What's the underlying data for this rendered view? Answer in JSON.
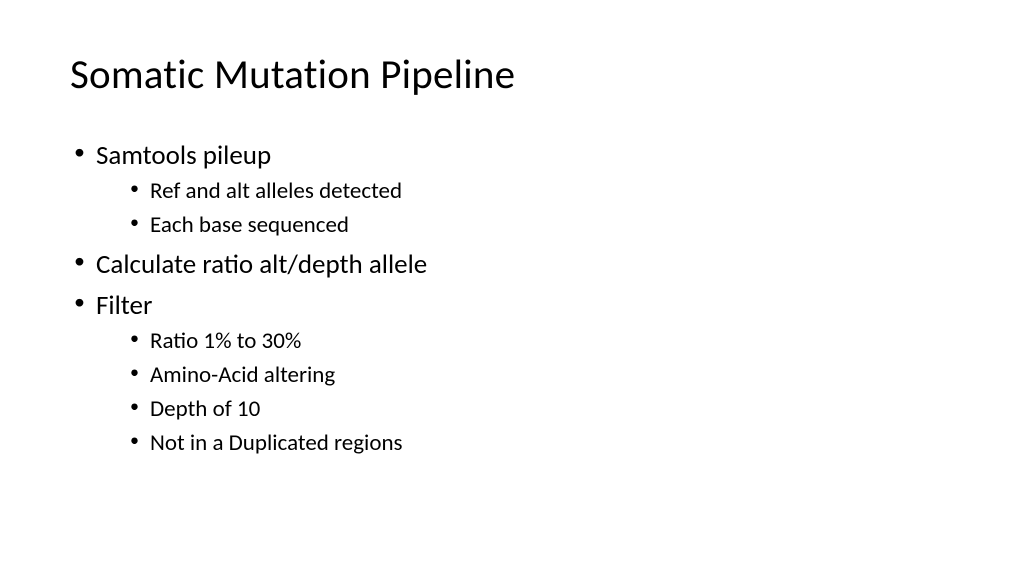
{
  "slide": {
    "title": "Somatic Mutation Pipeline",
    "background_color": "#ffffff",
    "text_color": "#000000",
    "title_fontsize": 41,
    "level1_fontsize": 27,
    "level2_fontsize": 23,
    "font_family": "Calibri",
    "bullets": [
      {
        "text": "Samtools pileup",
        "children": [
          {
            "text": "Ref and alt alleles detected"
          },
          {
            "text": "Each base sequenced"
          }
        ]
      },
      {
        "text": "Calculate ratio alt/depth allele",
        "children": []
      },
      {
        "text": "Filter",
        "children": [
          {
            "text": "Ratio 1% to 30%"
          },
          {
            "text": "Amino-Acid altering"
          },
          {
            "text": "Depth of 10"
          },
          {
            "text": "Not in a Duplicated regions"
          }
        ]
      }
    ]
  }
}
